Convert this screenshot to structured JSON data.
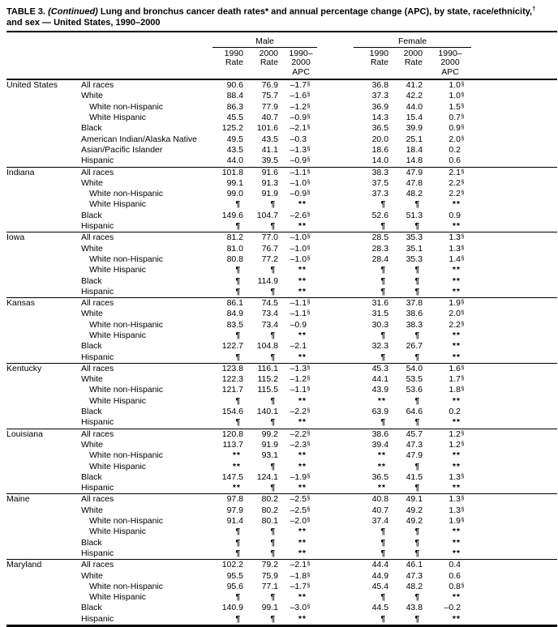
{
  "title": {
    "table_label": "TABLE 3.",
    "continued": "(Continued)",
    "segment1": " Lung and bronchus cancer death rates* and annual percentage change (APC), by state, race/ethnicity,",
    "dagger": "†",
    "line2": "and sex — United States, 1990–2000"
  },
  "header": {
    "male_label": "Male",
    "female_label": "Female",
    "subcols": [
      {
        "line1": "1990",
        "line2": "Rate"
      },
      {
        "line1": "2000",
        "line2": "Rate"
      },
      {
        "line1": "1990–2000",
        "line2": "APC"
      }
    ]
  },
  "markers": {
    "suppressed_rate": "¶",
    "suppressed_apc": "**",
    "significant_apc": "§"
  },
  "colors": {
    "text": "#000000",
    "background": "#ffffff",
    "rule": "#000000"
  },
  "table": {
    "groups": [
      {
        "state": "United States",
        "rows": [
          {
            "label": "All races",
            "indent": false,
            "m": [
              "90.6",
              "76.9",
              "–1.7§"
            ],
            "f": [
              "36.8",
              "41.2",
              "1.0§"
            ]
          },
          {
            "label": "White",
            "indent": false,
            "m": [
              "88.4",
              "75.7",
              "–1.6§"
            ],
            "f": [
              "37.3",
              "42.2",
              "1.0§"
            ]
          },
          {
            "label": "White non-Hispanic",
            "indent": true,
            "m": [
              "86.3",
              "77.9",
              "–1.2§"
            ],
            "f": [
              "36.9",
              "44.0",
              "1.5§"
            ]
          },
          {
            "label": "White Hispanic",
            "indent": true,
            "m": [
              "45.5",
              "40.7",
              "–0.9§"
            ],
            "f": [
              "14.3",
              "15.4",
              "0.7§"
            ]
          },
          {
            "label": "Black",
            "indent": false,
            "m": [
              "125.2",
              "101.6",
              "–2.1§"
            ],
            "f": [
              "36.5",
              "39.9",
              "0.9§"
            ]
          },
          {
            "label": "American Indian/Alaska Native",
            "indent": false,
            "m": [
              "49.5",
              "43.5",
              "–0.3"
            ],
            "f": [
              "20.0",
              "25.1",
              "2.0§"
            ]
          },
          {
            "label": "Asian/Pacific Islander",
            "indent": false,
            "m": [
              "43.5",
              "41.1",
              "–1.3§"
            ],
            "f": [
              "18.6",
              "18.4",
              "0.2"
            ]
          },
          {
            "label": "Hispanic",
            "indent": false,
            "m": [
              "44.0",
              "39.5",
              "–0.9§"
            ],
            "f": [
              "14.0",
              "14.8",
              "0.6"
            ]
          }
        ]
      },
      {
        "state": "Indiana",
        "rows": [
          {
            "label": "All races",
            "indent": false,
            "m": [
              "101.8",
              "91.6",
              "–1.1§"
            ],
            "f": [
              "38.3",
              "47.9",
              "2.1§"
            ]
          },
          {
            "label": "White",
            "indent": false,
            "m": [
              "99.1",
              "91.3",
              "–1.0§"
            ],
            "f": [
              "37.5",
              "47.8",
              "2.2§"
            ]
          },
          {
            "label": "White non-Hispanic",
            "indent": true,
            "m": [
              "99.0",
              "91.9",
              "–0.9§"
            ],
            "f": [
              "37.3",
              "48.2",
              "2.2§"
            ]
          },
          {
            "label": "White Hispanic",
            "indent": true,
            "m": [
              "¶",
              "¶",
              "**"
            ],
            "f": [
              "¶",
              "¶",
              "**"
            ]
          },
          {
            "label": "Black",
            "indent": false,
            "m": [
              "149.6",
              "104.7",
              "–2.6§"
            ],
            "f": [
              "52.6",
              "51.3",
              "0.9"
            ]
          },
          {
            "label": "Hispanic",
            "indent": false,
            "m": [
              "¶",
              "¶",
              "**"
            ],
            "f": [
              "¶",
              "¶",
              "**"
            ]
          }
        ]
      },
      {
        "state": "Iowa",
        "rows": [
          {
            "label": "All races",
            "indent": false,
            "m": [
              "81.2",
              "77.0",
              "–1.0§"
            ],
            "f": [
              "28.5",
              "35.3",
              "1.3§"
            ]
          },
          {
            "label": "White",
            "indent": false,
            "m": [
              "81.0",
              "76.7",
              "–1.0§"
            ],
            "f": [
              "28.3",
              "35.1",
              "1.3§"
            ]
          },
          {
            "label": "White non-Hispanic",
            "indent": true,
            "m": [
              "80.8",
              "77.2",
              "–1.0§"
            ],
            "f": [
              "28.4",
              "35.3",
              "1.4§"
            ]
          },
          {
            "label": "White Hispanic",
            "indent": true,
            "m": [
              "¶",
              "¶",
              "**"
            ],
            "f": [
              "¶",
              "¶",
              "**"
            ]
          },
          {
            "label": "Black",
            "indent": false,
            "m": [
              "¶",
              "114.9",
              "**"
            ],
            "f": [
              "¶",
              "¶",
              "**"
            ]
          },
          {
            "label": "Hispanic",
            "indent": false,
            "m": [
              "¶",
              "¶",
              "**"
            ],
            "f": [
              "¶",
              "¶",
              "**"
            ]
          }
        ]
      },
      {
        "state": "Kansas",
        "rows": [
          {
            "label": "All races",
            "indent": false,
            "m": [
              "86.1",
              "74.5",
              "–1.1§"
            ],
            "f": [
              "31.6",
              "37.8",
              "1.9§"
            ]
          },
          {
            "label": "White",
            "indent": false,
            "m": [
              "84.9",
              "73.4",
              "–1.1§"
            ],
            "f": [
              "31.5",
              "38.6",
              "2.0§"
            ]
          },
          {
            "label": "White non-Hispanic",
            "indent": true,
            "m": [
              "83.5",
              "73.4",
              "–0.9"
            ],
            "f": [
              "30.3",
              "38.3",
              "2.2§"
            ]
          },
          {
            "label": "White Hispanic",
            "indent": true,
            "m": [
              "¶",
              "¶",
              "**"
            ],
            "f": [
              "¶",
              "¶",
              "**"
            ]
          },
          {
            "label": "Black",
            "indent": false,
            "m": [
              "122.7",
              "104.8",
              "–2.1"
            ],
            "f": [
              "32.3",
              "26.7",
              "**"
            ]
          },
          {
            "label": "Hispanic",
            "indent": false,
            "m": [
              "¶",
              "¶",
              "**"
            ],
            "f": [
              "¶",
              "¶",
              "**"
            ]
          }
        ]
      },
      {
        "state": "Kentucky",
        "rows": [
          {
            "label": "All races",
            "indent": false,
            "m": [
              "123.8",
              "116.1",
              "–1.3§"
            ],
            "f": [
              "45.3",
              "54.0",
              "1.6§"
            ]
          },
          {
            "label": "White",
            "indent": false,
            "m": [
              "122.3",
              "115.2",
              "–1.2§"
            ],
            "f": [
              "44.1",
              "53.5",
              "1.7§"
            ]
          },
          {
            "label": "White non-Hispanic",
            "indent": true,
            "m": [
              "121.7",
              "115.5",
              "–1.1§"
            ],
            "f": [
              "43.9",
              "53.6",
              "1.8§"
            ]
          },
          {
            "label": "White Hispanic",
            "indent": true,
            "m": [
              "¶",
              "¶",
              "**"
            ],
            "f": [
              "**",
              "¶",
              "**"
            ]
          },
          {
            "label": "Black",
            "indent": false,
            "m": [
              "154.6",
              "140.1",
              "–2.2§"
            ],
            "f": [
              "63.9",
              "64.6",
              "0.2"
            ]
          },
          {
            "label": "Hispanic",
            "indent": false,
            "m": [
              "¶",
              "¶",
              "**"
            ],
            "f": [
              "¶",
              "¶",
              "**"
            ]
          }
        ]
      },
      {
        "state": "Louisiana",
        "rows": [
          {
            "label": "All races",
            "indent": false,
            "m": [
              "120.8",
              "99.2",
              "–2.2§"
            ],
            "f": [
              "38.6",
              "45.7",
              "1.2§"
            ]
          },
          {
            "label": "White",
            "indent": false,
            "m": [
              "113.7",
              "91.9",
              "–2.3§"
            ],
            "f": [
              "39.4",
              "47.3",
              "1.2§"
            ]
          },
          {
            "label": "White non-Hispanic",
            "indent": true,
            "m": [
              "**",
              "93.1",
              "**"
            ],
            "f": [
              "**",
              "47.9",
              "**"
            ]
          },
          {
            "label": "White Hispanic",
            "indent": true,
            "m": [
              "**",
              "¶",
              "**"
            ],
            "f": [
              "**",
              "¶",
              "**"
            ]
          },
          {
            "label": "Black",
            "indent": false,
            "m": [
              "147.5",
              "124.1",
              "–1.9§"
            ],
            "f": [
              "36.5",
              "41.5",
              "1.3§"
            ]
          },
          {
            "label": "Hispanic",
            "indent": false,
            "m": [
              "**",
              "¶",
              "**"
            ],
            "f": [
              "**",
              "¶",
              "**"
            ]
          }
        ]
      },
      {
        "state": "Maine",
        "rows": [
          {
            "label": "All races",
            "indent": false,
            "m": [
              "97.8",
              "80.2",
              "–2.5§"
            ],
            "f": [
              "40.8",
              "49.1",
              "1.3§"
            ]
          },
          {
            "label": "White",
            "indent": false,
            "m": [
              "97.9",
              "80.2",
              "–2.5§"
            ],
            "f": [
              "40.7",
              "49.2",
              "1.3§"
            ]
          },
          {
            "label": "White non-Hispanic",
            "indent": true,
            "m": [
              "91.4",
              "80.1",
              "–2.0§"
            ],
            "f": [
              "37.4",
              "49.2",
              "1.9§"
            ]
          },
          {
            "label": "White Hispanic",
            "indent": true,
            "m": [
              "¶",
              "¶",
              "**"
            ],
            "f": [
              "¶",
              "¶",
              "**"
            ]
          },
          {
            "label": "Black",
            "indent": false,
            "m": [
              "¶",
              "¶",
              "**"
            ],
            "f": [
              "¶",
              "¶",
              "**"
            ]
          },
          {
            "label": "Hispanic",
            "indent": false,
            "m": [
              "¶",
              "¶",
              "**"
            ],
            "f": [
              "¶",
              "¶",
              "**"
            ]
          }
        ]
      },
      {
        "state": "Maryland",
        "rows": [
          {
            "label": "All races",
            "indent": false,
            "m": [
              "102.2",
              "79.2",
              "–2.1§"
            ],
            "f": [
              "44.4",
              "46.1",
              "0.4"
            ]
          },
          {
            "label": "White",
            "indent": false,
            "m": [
              "95.5",
              "75.9",
              "–1.8§"
            ],
            "f": [
              "44.9",
              "47.3",
              "0.6"
            ]
          },
          {
            "label": "White non-Hispanic",
            "indent": true,
            "m": [
              "95.6",
              "77.1",
              "–1.7§"
            ],
            "f": [
              "45.4",
              "48.2",
              "0.8§"
            ]
          },
          {
            "label": "White Hispanic",
            "indent": true,
            "m": [
              "¶",
              "¶",
              "**"
            ],
            "f": [
              "¶",
              "¶",
              "**"
            ]
          },
          {
            "label": "Black",
            "indent": false,
            "m": [
              "140.9",
              "99.1",
              "–3.0§"
            ],
            "f": [
              "44.5",
              "43.8",
              "–0.2"
            ]
          },
          {
            "label": "Hispanic",
            "indent": false,
            "m": [
              "¶",
              "¶",
              "**"
            ],
            "f": [
              "¶",
              "¶",
              "**"
            ]
          }
        ]
      }
    ]
  }
}
